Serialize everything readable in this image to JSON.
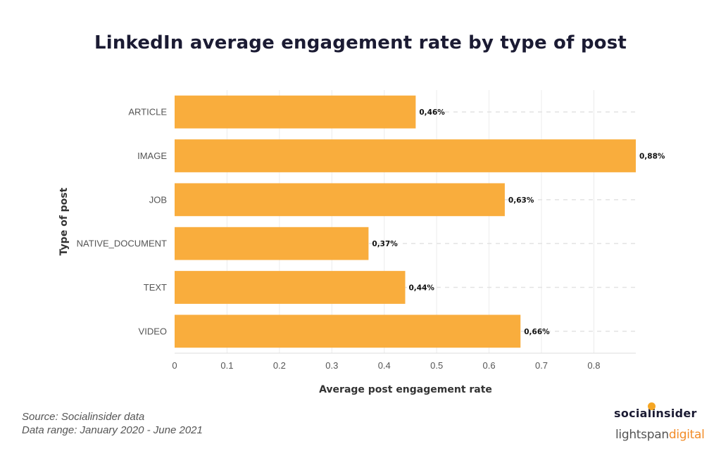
{
  "chart_data": {
    "type": "bar",
    "orientation": "horizontal",
    "title": "LinkedIn average engagement rate by type of post",
    "xlabel": "Average post engagement rate",
    "ylabel": "Type of post",
    "categories": [
      "ARTICLE",
      "IMAGE",
      "JOB",
      "NATIVE_DOCUMENT",
      "TEXT",
      "VIDEO"
    ],
    "values": [
      0.46,
      0.88,
      0.63,
      0.37,
      0.44,
      0.66
    ],
    "data_labels": [
      "0,46%",
      "0,88%",
      "0,63%",
      "0,37%",
      "0,44%",
      "0,66%"
    ],
    "xticks": [
      0,
      0.1,
      0.2,
      0.3,
      0.4,
      0.5,
      0.6,
      0.7,
      0.8
    ],
    "xtick_labels": [
      "0",
      "0.1",
      "0.2",
      "0.3",
      "0.4",
      "0.5",
      "0.6",
      "0.7",
      "0.8"
    ],
    "xlim": [
      0,
      0.88
    ],
    "grid": true,
    "bar_color": "#f9ad3d"
  },
  "footer": {
    "source": "Source: Socialinsider data",
    "range": "Data range: January 2020 - June 2021"
  },
  "brands": {
    "socialinsider": "socialinsider",
    "lightspan_prefix": "lightspan",
    "lightspan_accent": "digital"
  }
}
